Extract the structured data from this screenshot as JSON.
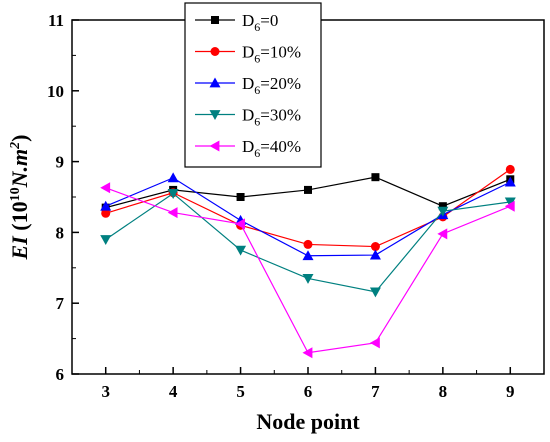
{
  "chart_data": {
    "type": "line",
    "x": [
      3,
      4,
      5,
      6,
      7,
      8,
      9
    ],
    "xlabel": "Node point",
    "ylabel": "EI (10^10 N.m^2)",
    "ylabel_parts": {
      "main": "EI (10",
      "exp1": "10",
      "mid": "N.m",
      "exp2": "2",
      "end": ")"
    },
    "xlim": [
      2.5,
      9.5
    ],
    "ylim": [
      6,
      11
    ],
    "xticks": [
      3,
      4,
      5,
      6,
      7,
      8,
      9
    ],
    "yticks": [
      6,
      7,
      8,
      9,
      10,
      11
    ],
    "grid": false,
    "legend_position": "top-center",
    "series": [
      {
        "name": "D6=0",
        "label_main": "D",
        "label_sub": "6",
        "label_rest": "=0",
        "color": "#000000",
        "marker": "square",
        "values": [
          8.35,
          8.6,
          8.5,
          8.6,
          8.78,
          8.37,
          8.75
        ]
      },
      {
        "name": "D6=10%",
        "label_main": "D",
        "label_sub": "6",
        "label_rest": "=10%",
        "color": "#ff0000",
        "marker": "circle",
        "values": [
          8.27,
          8.56,
          8.1,
          7.83,
          7.8,
          8.22,
          8.89
        ]
      },
      {
        "name": "D6=20%",
        "label_main": "D",
        "label_sub": "6",
        "label_rest": "=20%",
        "color": "#0000ff",
        "marker": "triangle-up",
        "values": [
          8.37,
          8.77,
          8.17,
          7.67,
          7.68,
          8.25,
          8.71
        ]
      },
      {
        "name": "D6=30%",
        "label_main": "D",
        "label_sub": "6",
        "label_rest": "=30%",
        "color": "#008080",
        "marker": "triangle-down",
        "values": [
          7.9,
          8.55,
          7.75,
          7.35,
          7.16,
          8.3,
          8.43
        ]
      },
      {
        "name": "D6=40%",
        "label_main": "D",
        "label_sub": "6",
        "label_rest": "=40%",
        "color": "#ff00ff",
        "marker": "triangle-left",
        "values": [
          8.63,
          8.28,
          8.12,
          6.3,
          6.44,
          7.98,
          8.37
        ]
      }
    ]
  }
}
